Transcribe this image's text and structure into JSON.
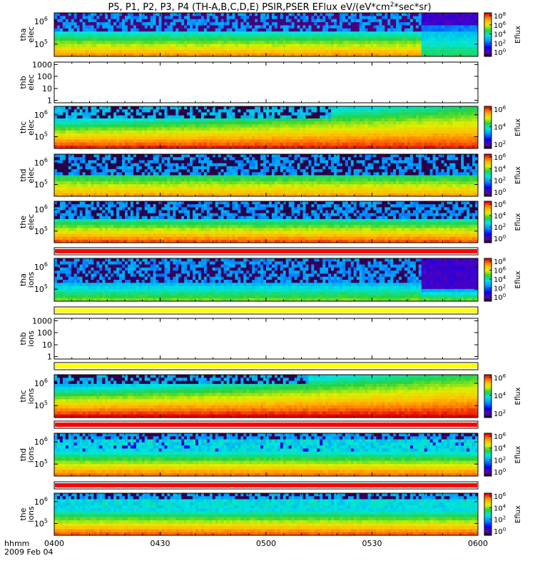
{
  "chart_data": {
    "type": "heatmap",
    "title": "P5, P1, P2, P3, P4 (TH-A,B,C,D,E) PSIR,PSER EFlux eV/(eV*cm²*sec*sr)",
    "title_parts": {
      "main": "P5, P1, P2, P3, P4 (TH-A,B,C,D,E) PSIR,PSER EFlux eV/(eV*cm",
      "sup": "2",
      "tail": "*sec*sr)"
    },
    "x_axis": {
      "ticks": [
        "0400",
        "0430",
        "0500",
        "0530",
        "0600"
      ],
      "range_minutes": [
        0,
        120
      ],
      "tick_minutes": [
        0,
        30,
        60,
        90,
        120
      ],
      "label_line1": "hhmm",
      "label_line2": "2009 Feb 04"
    },
    "colorbar_label": "Eflux",
    "panels": [
      {
        "id": "tha-elec",
        "label_line1": "tha",
        "label_line2": "elec",
        "y_scale": "log",
        "y_ticks": [
          "10",
          "10"
        ],
        "y_tick_exps": [
          "6",
          "5"
        ],
        "data_gap": false,
        "colorbar_ticks": [
          "10",
          "10",
          "10",
          "10",
          "10"
        ],
        "colorbar_exps": [
          "8",
          "6",
          "4",
          "2",
          "0"
        ],
        "pattern": "tha_e"
      },
      {
        "id": "thb-elec",
        "label_line1": "thb",
        "label_line2": "elec",
        "y_scale": "log",
        "y_ticks": [
          "1000",
          "100",
          "10",
          "1"
        ],
        "data_gap": true
      },
      {
        "id": "thc-elec",
        "label_line1": "thc",
        "label_line2": "elec",
        "y_scale": "log",
        "y_ticks": [
          "10",
          "10"
        ],
        "y_tick_exps": [
          "6",
          "5"
        ],
        "data_gap": false,
        "colorbar_ticks": [
          "10",
          "10",
          "10"
        ],
        "colorbar_exps": [
          "6",
          "4",
          "2"
        ],
        "pattern": "thc_e"
      },
      {
        "id": "thd-elec",
        "label_line1": "thd",
        "label_line2": "elec",
        "y_scale": "log",
        "y_ticks": [
          "10",
          "10"
        ],
        "y_tick_exps": [
          "6",
          "5"
        ],
        "data_gap": false,
        "colorbar_ticks": [
          "10",
          "10",
          "10",
          "10"
        ],
        "colorbar_exps": [
          "6",
          "4",
          "2",
          "0"
        ],
        "pattern": "thd_e"
      },
      {
        "id": "the-elec",
        "label_line1": "the",
        "label_line2": "elec",
        "y_scale": "log",
        "y_ticks": [
          "10",
          "10"
        ],
        "y_tick_exps": [
          "6",
          "5"
        ],
        "data_gap": false,
        "colorbar_ticks": [
          "10",
          "10",
          "10",
          "10"
        ],
        "colorbar_exps": [
          "6",
          "4",
          "2",
          "0"
        ],
        "pattern": "the_e"
      },
      {
        "id": "tha-ions",
        "label_line1": "tha",
        "label_line2": "ions",
        "y_scale": "log",
        "y_ticks": [
          "10",
          "10"
        ],
        "y_tick_exps": [
          "6",
          "5"
        ],
        "data_gap": false,
        "colorbar_ticks": [
          "10",
          "10",
          "10",
          "10",
          "10"
        ],
        "colorbar_exps": [
          "8",
          "6",
          "4",
          "2",
          "0"
        ],
        "pattern": "tha_i"
      },
      {
        "id": "thb-ions",
        "label_line1": "thb",
        "label_line2": "ions",
        "y_scale": "log",
        "y_ticks": [
          "1000",
          "100",
          "10",
          "1"
        ],
        "data_gap": true
      },
      {
        "id": "thc-ions",
        "label_line1": "thc",
        "label_line2": "ions",
        "y_scale": "log",
        "y_ticks": [
          "10",
          "10"
        ],
        "y_tick_exps": [
          "6",
          "5"
        ],
        "data_gap": false,
        "colorbar_ticks": [
          "10",
          "10",
          "10"
        ],
        "colorbar_exps": [
          "6",
          "4",
          "2"
        ],
        "pattern": "thc_i"
      },
      {
        "id": "thd-ions",
        "label_line1": "thd",
        "label_line2": "ions",
        "y_scale": "log",
        "y_ticks": [
          "10",
          "10"
        ],
        "y_tick_exps": [
          "6",
          "5"
        ],
        "data_gap": false,
        "colorbar_ticks": [
          "10",
          "10",
          "10",
          "10"
        ],
        "colorbar_exps": [
          "6",
          "4",
          "2",
          "0"
        ],
        "pattern": "thd_i"
      },
      {
        "id": "the-ions",
        "label_line1": "the",
        "label_line2": "ions",
        "y_scale": "log",
        "y_ticks": [
          "10",
          "10"
        ],
        "y_tick_exps": [
          "6",
          "5"
        ],
        "data_gap": false,
        "colorbar_ticks": [
          "10",
          "10",
          "10",
          "10"
        ],
        "colorbar_exps": [
          "6",
          "4",
          "2",
          "0"
        ],
        "pattern": "the_i"
      }
    ],
    "status_bars": [
      {
        "id": "bar-elec-1",
        "color": "#ff0000"
      },
      {
        "id": "bar-ions-1",
        "color": "#ffff00"
      },
      {
        "id": "bar-ions-2",
        "color": "#ffff00"
      },
      {
        "id": "bar-ions-3",
        "color": "#ff0000"
      },
      {
        "id": "bar-ions-4",
        "color": "#ff0000"
      }
    ]
  }
}
